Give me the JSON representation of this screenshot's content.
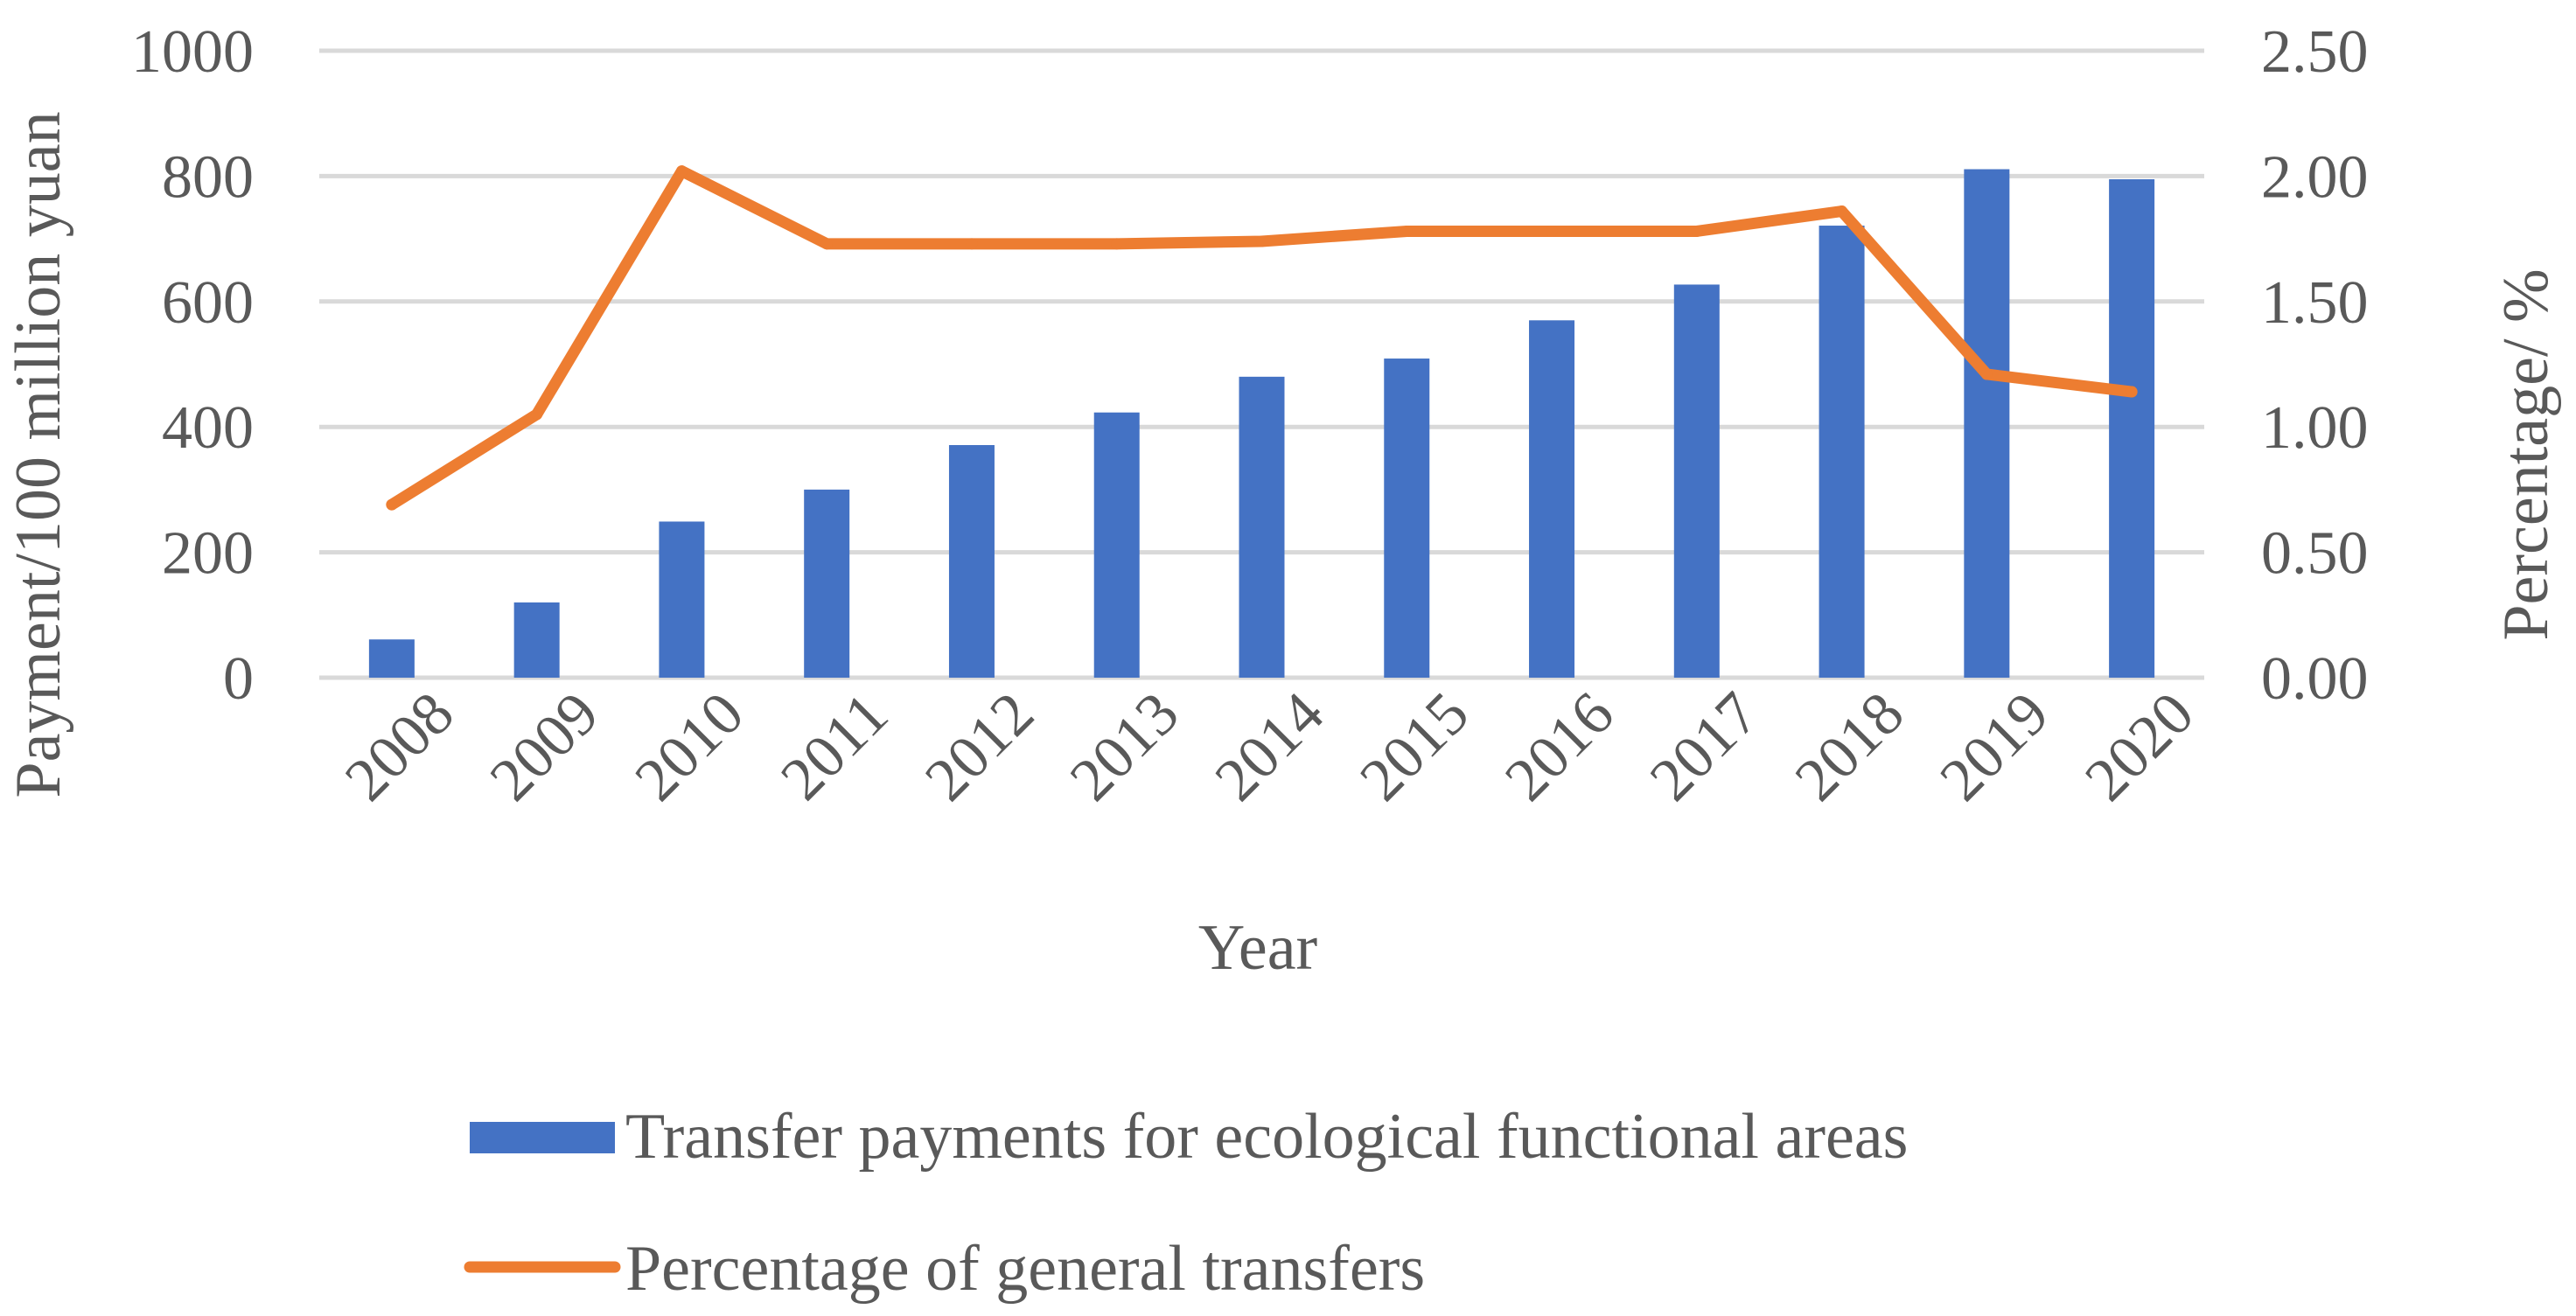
{
  "chart_data": {
    "type": "bar",
    "categories": [
      "2008",
      "2009",
      "2010",
      "2011",
      "2012",
      "2013",
      "2014",
      "2015",
      "2016",
      "2017",
      "2018",
      "2019",
      "2020"
    ],
    "series": [
      {
        "name": "Transfer payments for ecological functional areas",
        "type": "bar",
        "axis": "left",
        "color": "#4472C4",
        "values": [
          61,
          120,
          249,
          300,
          371,
          423,
          480,
          509,
          570,
          627,
          721,
          811,
          795
        ]
      },
      {
        "name": "Percentage of general transfers",
        "type": "line",
        "axis": "right",
        "color": "#ED7D31",
        "values": [
          0.69,
          1.05,
          2.02,
          1.73,
          1.73,
          1.73,
          1.74,
          1.78,
          1.78,
          1.78,
          1.86,
          1.21,
          1.14
        ]
      }
    ],
    "xlabel": "Year",
    "ylabel": "Payment/100 million yuan",
    "y2label": "Percentage/ %",
    "ylim": [
      0,
      1000
    ],
    "y2lim": [
      0,
      2.5
    ],
    "yticks": [
      "0",
      "200",
      "400",
      "600",
      "800",
      "1000"
    ],
    "y2ticks": [
      "0.00",
      "0.50",
      "1.00",
      "1.50",
      "2.00",
      "2.50"
    ],
    "grid": true,
    "legend_position": "bottom",
    "gridline_color": "#D9D9D9"
  }
}
